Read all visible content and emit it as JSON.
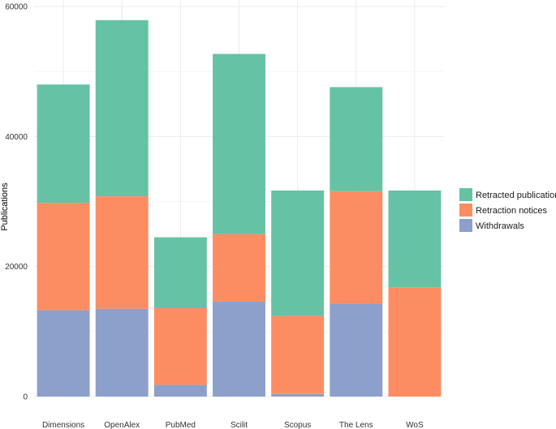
{
  "chart_data": {
    "type": "bar",
    "stacked": true,
    "title": "",
    "xlabel": "",
    "ylabel": "Publications",
    "ylim": [
      0,
      60000
    ],
    "yticks": [
      0,
      20000,
      40000,
      60000
    ],
    "ytick_labels": [
      "0",
      "20000",
      "40000",
      "60000"
    ],
    "categories": [
      "Dimensions",
      "OpenAlex",
      "PubMed",
      "Scilit",
      "Scopus",
      "The Lens",
      "WoS"
    ],
    "series": [
      {
        "name": "Withdrawals",
        "color": "#8da0cb",
        "values": [
          13300,
          13500,
          1800,
          14600,
          400,
          14300,
          0
        ]
      },
      {
        "name": "Retraction notices",
        "color": "#fc8d62",
        "values": [
          16500,
          17300,
          11800,
          10400,
          12000,
          17300,
          16800
        ]
      },
      {
        "name": "Retracted publications",
        "color": "#66c2a5",
        "values": [
          18200,
          27100,
          10900,
          27700,
          19300,
          16000,
          14900
        ]
      }
    ],
    "legend": {
      "position": "right",
      "entries": [
        "Retracted publications",
        "Retraction notices",
        "Withdrawals"
      ]
    },
    "grid": true
  }
}
